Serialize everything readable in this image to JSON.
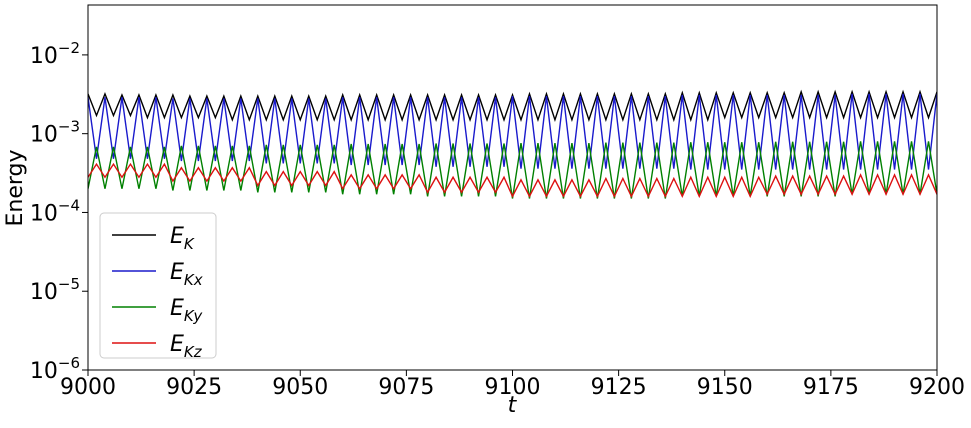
{
  "chart_data": {
    "type": "line",
    "xlabel": "t",
    "ylabel": "Energy",
    "log_y": true,
    "legend": "lower left",
    "xlim": [
      9000,
      9200
    ],
    "xticks": [
      9000,
      9025,
      9050,
      9075,
      9100,
      9125,
      9150,
      9175,
      9200
    ],
    "ylim": [
      1e-06,
      0.043
    ],
    "yticks": [
      {
        "value": 1e-06,
        "label": "10−6"
      },
      {
        "value": 1e-05,
        "label": "10−5"
      },
      {
        "value": 0.0001,
        "label": "10−4"
      },
      {
        "value": 0.001,
        "label": "10−3"
      },
      {
        "value": 0.01,
        "label": "10−2"
      }
    ],
    "x": [
      9000,
      9002,
      9004,
      9006,
      9008,
      9010,
      9012,
      9014,
      9016,
      9018,
      9020,
      9022,
      9024,
      9026,
      9028,
      9030,
      9032,
      9034,
      9036,
      9038,
      9040,
      9042,
      9044,
      9046,
      9048,
      9050,
      9052,
      9054,
      9056,
      9058,
      9060,
      9062,
      9064,
      9066,
      9068,
      9070,
      9072,
      9074,
      9076,
      9078,
      9080,
      9082,
      9084,
      9086,
      9088,
      9090,
      9092,
      9094,
      9096,
      9098,
      9100,
      9102,
      9104,
      9106,
      9108,
      9110,
      9112,
      9114,
      9116,
      9118,
      9120,
      9122,
      9124,
      9126,
      9128,
      9130,
      9132,
      9134,
      9136,
      9138,
      9140,
      9142,
      9144,
      9146,
      9148,
      9150,
      9152,
      9154,
      9156,
      9158,
      9160,
      9162,
      9164,
      9166,
      9168,
      9170,
      9172,
      9174,
      9176,
      9178,
      9180,
      9182,
      9184,
      9186,
      9188,
      9190,
      9192,
      9194,
      9196,
      9198,
      9200
    ],
    "series": [
      {
        "name": "EK",
        "color": "#000000",
        "values": [
          0.0032,
          0.0017,
          0.0032,
          0.0017,
          0.0031,
          0.0017,
          0.0031,
          0.0016,
          0.0031,
          0.0016,
          0.0031,
          0.0016,
          0.003,
          0.0016,
          0.003,
          0.0016,
          0.003,
          0.0015,
          0.003,
          0.0015,
          0.003,
          0.0015,
          0.003,
          0.0015,
          0.003,
          0.0015,
          0.003,
          0.0015,
          0.003,
          0.0015,
          0.0031,
          0.0015,
          0.0031,
          0.0015,
          0.0031,
          0.0015,
          0.0031,
          0.0015,
          0.0031,
          0.0015,
          0.0031,
          0.0015,
          0.0031,
          0.0015,
          0.0031,
          0.0015,
          0.0031,
          0.0015,
          0.0031,
          0.0015,
          0.0031,
          0.0015,
          0.0032,
          0.0015,
          0.0032,
          0.0015,
          0.0032,
          0.0015,
          0.0032,
          0.0015,
          0.0032,
          0.0015,
          0.0032,
          0.0015,
          0.0032,
          0.0015,
          0.0032,
          0.0015,
          0.0032,
          0.0015,
          0.0033,
          0.0015,
          0.0033,
          0.0015,
          0.0033,
          0.0016,
          0.0033,
          0.0016,
          0.0033,
          0.0016,
          0.0033,
          0.0016,
          0.0033,
          0.0016,
          0.0034,
          0.0016,
          0.0034,
          0.0016,
          0.0034,
          0.0016,
          0.0034,
          0.0016,
          0.0034,
          0.0016,
          0.0034,
          0.0016,
          0.0034,
          0.0016,
          0.0034,
          0.0016,
          0.0034
        ]
      },
      {
        "name": "EKx",
        "color": "#1a1acc",
        "values": [
          0.0029,
          0.00048,
          0.0029,
          0.00048,
          0.0029,
          0.00048,
          0.0029,
          0.00048,
          0.0029,
          0.00048,
          0.0028,
          0.00045,
          0.0028,
          0.00045,
          0.0028,
          0.00045,
          0.0028,
          0.00045,
          0.0028,
          0.00045,
          0.0028,
          0.00042,
          0.0028,
          0.00042,
          0.0028,
          0.00042,
          0.0028,
          0.00042,
          0.0028,
          0.00042,
          0.0029,
          0.0004,
          0.0029,
          0.0004,
          0.0029,
          0.0004,
          0.0029,
          0.0004,
          0.0029,
          0.0004,
          0.0029,
          0.00038,
          0.0029,
          0.00038,
          0.0029,
          0.00038,
          0.0029,
          0.00038,
          0.0029,
          0.00038,
          0.003,
          0.00036,
          0.003,
          0.00036,
          0.003,
          0.00036,
          0.003,
          0.00036,
          0.003,
          0.00036,
          0.003,
          0.00036,
          0.003,
          0.00036,
          0.003,
          0.00036,
          0.003,
          0.00036,
          0.003,
          0.00036,
          0.0031,
          0.00035,
          0.0031,
          0.00035,
          0.0031,
          0.00035,
          0.0031,
          0.00035,
          0.0031,
          0.00035,
          0.0031,
          0.00035,
          0.0031,
          0.00035,
          0.0031,
          0.00035,
          0.0031,
          0.00035,
          0.0031,
          0.00035,
          0.0032,
          0.00035,
          0.0032,
          0.00035,
          0.0032,
          0.00035,
          0.0032,
          0.00035,
          0.0032,
          0.00035,
          0.0032
        ]
      },
      {
        "name": "EKy",
        "color": "#008000",
        "values": [
          0.0002,
          0.00068,
          0.0002,
          0.00068,
          0.0002,
          0.00068,
          0.0002,
          0.00068,
          0.0002,
          0.00068,
          0.00019,
          0.0007,
          0.00019,
          0.0007,
          0.00019,
          0.0007,
          0.00019,
          0.0007,
          0.00019,
          0.0007,
          0.00018,
          0.00072,
          0.00018,
          0.00072,
          0.00018,
          0.00072,
          0.00018,
          0.00072,
          0.00018,
          0.00072,
          0.00017,
          0.00074,
          0.00017,
          0.00074,
          0.00017,
          0.00074,
          0.00017,
          0.00074,
          0.00017,
          0.00074,
          0.00016,
          0.00075,
          0.00016,
          0.00075,
          0.00016,
          0.00075,
          0.00016,
          0.00075,
          0.00016,
          0.00075,
          0.00015,
          0.00076,
          0.00015,
          0.00076,
          0.00015,
          0.00076,
          0.00015,
          0.00076,
          0.00015,
          0.00076,
          0.00015,
          0.00077,
          0.00015,
          0.00077,
          0.00015,
          0.00077,
          0.00015,
          0.00077,
          0.00015,
          0.00077,
          0.00016,
          0.00078,
          0.00016,
          0.00078,
          0.00016,
          0.00078,
          0.00016,
          0.00078,
          0.00016,
          0.00078,
          0.00016,
          0.00079,
          0.00016,
          0.00079,
          0.00016,
          0.00079,
          0.00016,
          0.00079,
          0.00016,
          0.00079,
          0.00017,
          0.0008,
          0.00017,
          0.0008,
          0.00017,
          0.0008,
          0.00017,
          0.0008,
          0.00017,
          0.0008,
          0.00017
        ]
      },
      {
        "name": "EKz",
        "color": "#dd1111",
        "values": [
          0.00028,
          0.00041,
          0.00028,
          0.00041,
          0.00028,
          0.00041,
          0.00028,
          0.00041,
          0.00028,
          0.00041,
          0.00025,
          0.00037,
          0.00025,
          0.00037,
          0.00025,
          0.00037,
          0.00025,
          0.00037,
          0.00025,
          0.00037,
          0.00022,
          0.00033,
          0.00022,
          0.00033,
          0.00022,
          0.00033,
          0.00022,
          0.00033,
          0.00022,
          0.00033,
          0.0002,
          0.0003,
          0.0002,
          0.0003,
          0.0002,
          0.0003,
          0.0002,
          0.0003,
          0.0002,
          0.0003,
          0.00018,
          0.00028,
          0.00018,
          0.00028,
          0.00018,
          0.00028,
          0.00018,
          0.00028,
          0.00018,
          0.00028,
          0.00016,
          0.00026,
          0.00016,
          0.00026,
          0.00016,
          0.00026,
          0.00016,
          0.00026,
          0.00016,
          0.00026,
          0.00016,
          0.00027,
          0.00016,
          0.00027,
          0.00016,
          0.00027,
          0.00016,
          0.00027,
          0.00016,
          0.00027,
          0.00016,
          0.00028,
          0.00016,
          0.00028,
          0.00016,
          0.00028,
          0.00016,
          0.00028,
          0.00016,
          0.00028,
          0.00017,
          0.00029,
          0.00017,
          0.00029,
          0.00017,
          0.00029,
          0.00017,
          0.00029,
          0.00017,
          0.00029,
          0.00017,
          0.0003,
          0.00017,
          0.0003,
          0.00017,
          0.0003,
          0.00017,
          0.0003,
          0.00017,
          0.0003,
          0.00017
        ]
      }
    ]
  }
}
